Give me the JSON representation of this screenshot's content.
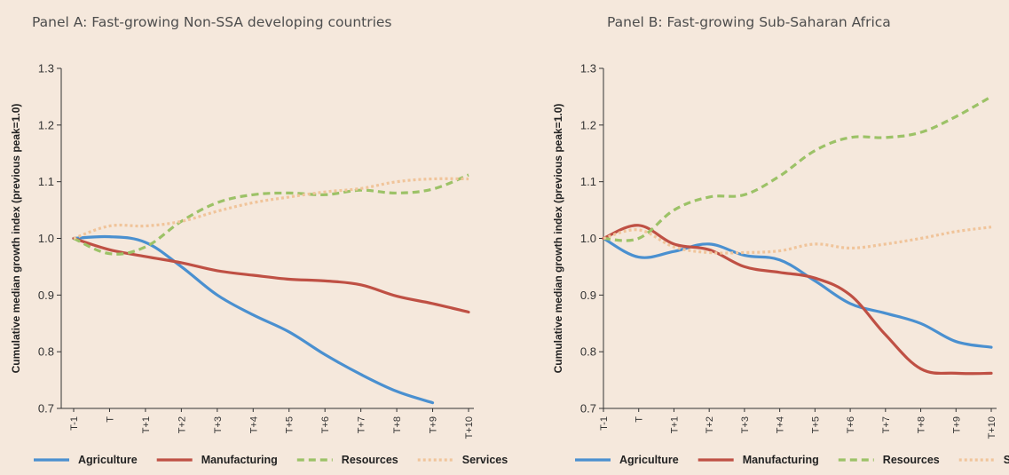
{
  "panels": [
    {
      "title": "Panel A: Fast-growing Non-SSA developing countries"
    },
    {
      "title": "Panel B: Fast-growing Sub-Saharan Africa"
    }
  ],
  "colors": {
    "agriculture": "#4a90d0",
    "manufacturing": "#bf5044",
    "resources": "#9cc267",
    "services": "#f0c49a"
  },
  "chart_data": [
    {
      "type": "line",
      "title": "Panel A: Fast-growing Non-SSA developing countries",
      "ylabel": "Cumulative median growth index (previous peak=1.0)",
      "xlabel": "",
      "ylim": [
        0.7,
        1.3
      ],
      "yticks": [
        "0.7",
        "0.8",
        "0.9",
        "1.0",
        "1.1",
        "1.2",
        "1.3"
      ],
      "yticks_values": [
        0.7,
        0.8,
        0.9,
        1.0,
        1.1,
        1.2,
        1.3
      ],
      "categories": [
        "T-1",
        "T",
        "T+1",
        "T+2",
        "T+3",
        "T+4",
        "T+5",
        "T+6",
        "T+7",
        "T+8",
        "T+9",
        "T+10"
      ],
      "grid": false,
      "legend_position": "bottom",
      "series": [
        {
          "name": "Agriculture",
          "style": "solid",
          "color": "#4a90d0",
          "values": [
            1.0,
            1.003,
            0.993,
            0.95,
            0.9,
            0.865,
            0.835,
            0.795,
            0.76,
            0.73,
            0.71,
            null
          ]
        },
        {
          "name": "Manufacturing",
          "style": "solid",
          "color": "#bf5044",
          "values": [
            1.0,
            0.98,
            0.968,
            0.957,
            0.943,
            0.935,
            0.928,
            0.925,
            0.918,
            0.898,
            0.885,
            0.87
          ]
        },
        {
          "name": "Resources",
          "style": "dashed",
          "color": "#9cc267",
          "values": [
            1.0,
            0.973,
            0.985,
            1.03,
            1.063,
            1.077,
            1.08,
            1.077,
            1.085,
            1.08,
            1.087,
            1.112
          ]
        },
        {
          "name": "Services",
          "style": "dotted",
          "color": "#f0c49a",
          "values": [
            1.0,
            1.022,
            1.022,
            1.03,
            1.048,
            1.063,
            1.073,
            1.082,
            1.088,
            1.1,
            1.105,
            1.105
          ]
        }
      ]
    },
    {
      "type": "line",
      "title": "Panel B: Fast-growing Sub-Saharan Africa",
      "ylabel": "Cumulative median growth index (previous peak=1.0)",
      "xlabel": "",
      "ylim": [
        0.7,
        1.3
      ],
      "yticks": [
        "0.7",
        "0.8",
        "0.9",
        "1.0",
        "1.1",
        "1.2",
        "1.3"
      ],
      "yticks_values": [
        0.7,
        0.8,
        0.9,
        1.0,
        1.1,
        1.2,
        1.3
      ],
      "categories": [
        "T-1",
        "T",
        "T+1",
        "T+2",
        "T+3",
        "T+4",
        "T+5",
        "T+6",
        "T+7",
        "T+8",
        "T+9",
        "T+10"
      ],
      "grid": false,
      "legend_position": "bottom",
      "series": [
        {
          "name": "Agriculture",
          "style": "solid",
          "color": "#4a90d0",
          "values": [
            1.0,
            0.967,
            0.977,
            0.99,
            0.97,
            0.962,
            0.925,
            0.885,
            0.868,
            0.85,
            0.818,
            0.808
          ]
        },
        {
          "name": "Manufacturing",
          "style": "solid",
          "color": "#bf5044",
          "values": [
            1.0,
            1.023,
            0.99,
            0.98,
            0.95,
            0.94,
            0.93,
            0.9,
            0.83,
            0.77,
            0.762,
            0.762
          ]
        },
        {
          "name": "Resources",
          "style": "dashed",
          "color": "#9cc267",
          "values": [
            1.0,
            1.0,
            1.05,
            1.073,
            1.077,
            1.11,
            1.155,
            1.178,
            1.178,
            1.187,
            1.215,
            1.25
          ]
        },
        {
          "name": "Services",
          "style": "dotted",
          "color": "#f0c49a",
          "values": [
            1.0,
            1.015,
            0.985,
            0.975,
            0.975,
            0.978,
            0.99,
            0.983,
            0.99,
            1.0,
            1.012,
            1.02
          ]
        }
      ]
    }
  ]
}
